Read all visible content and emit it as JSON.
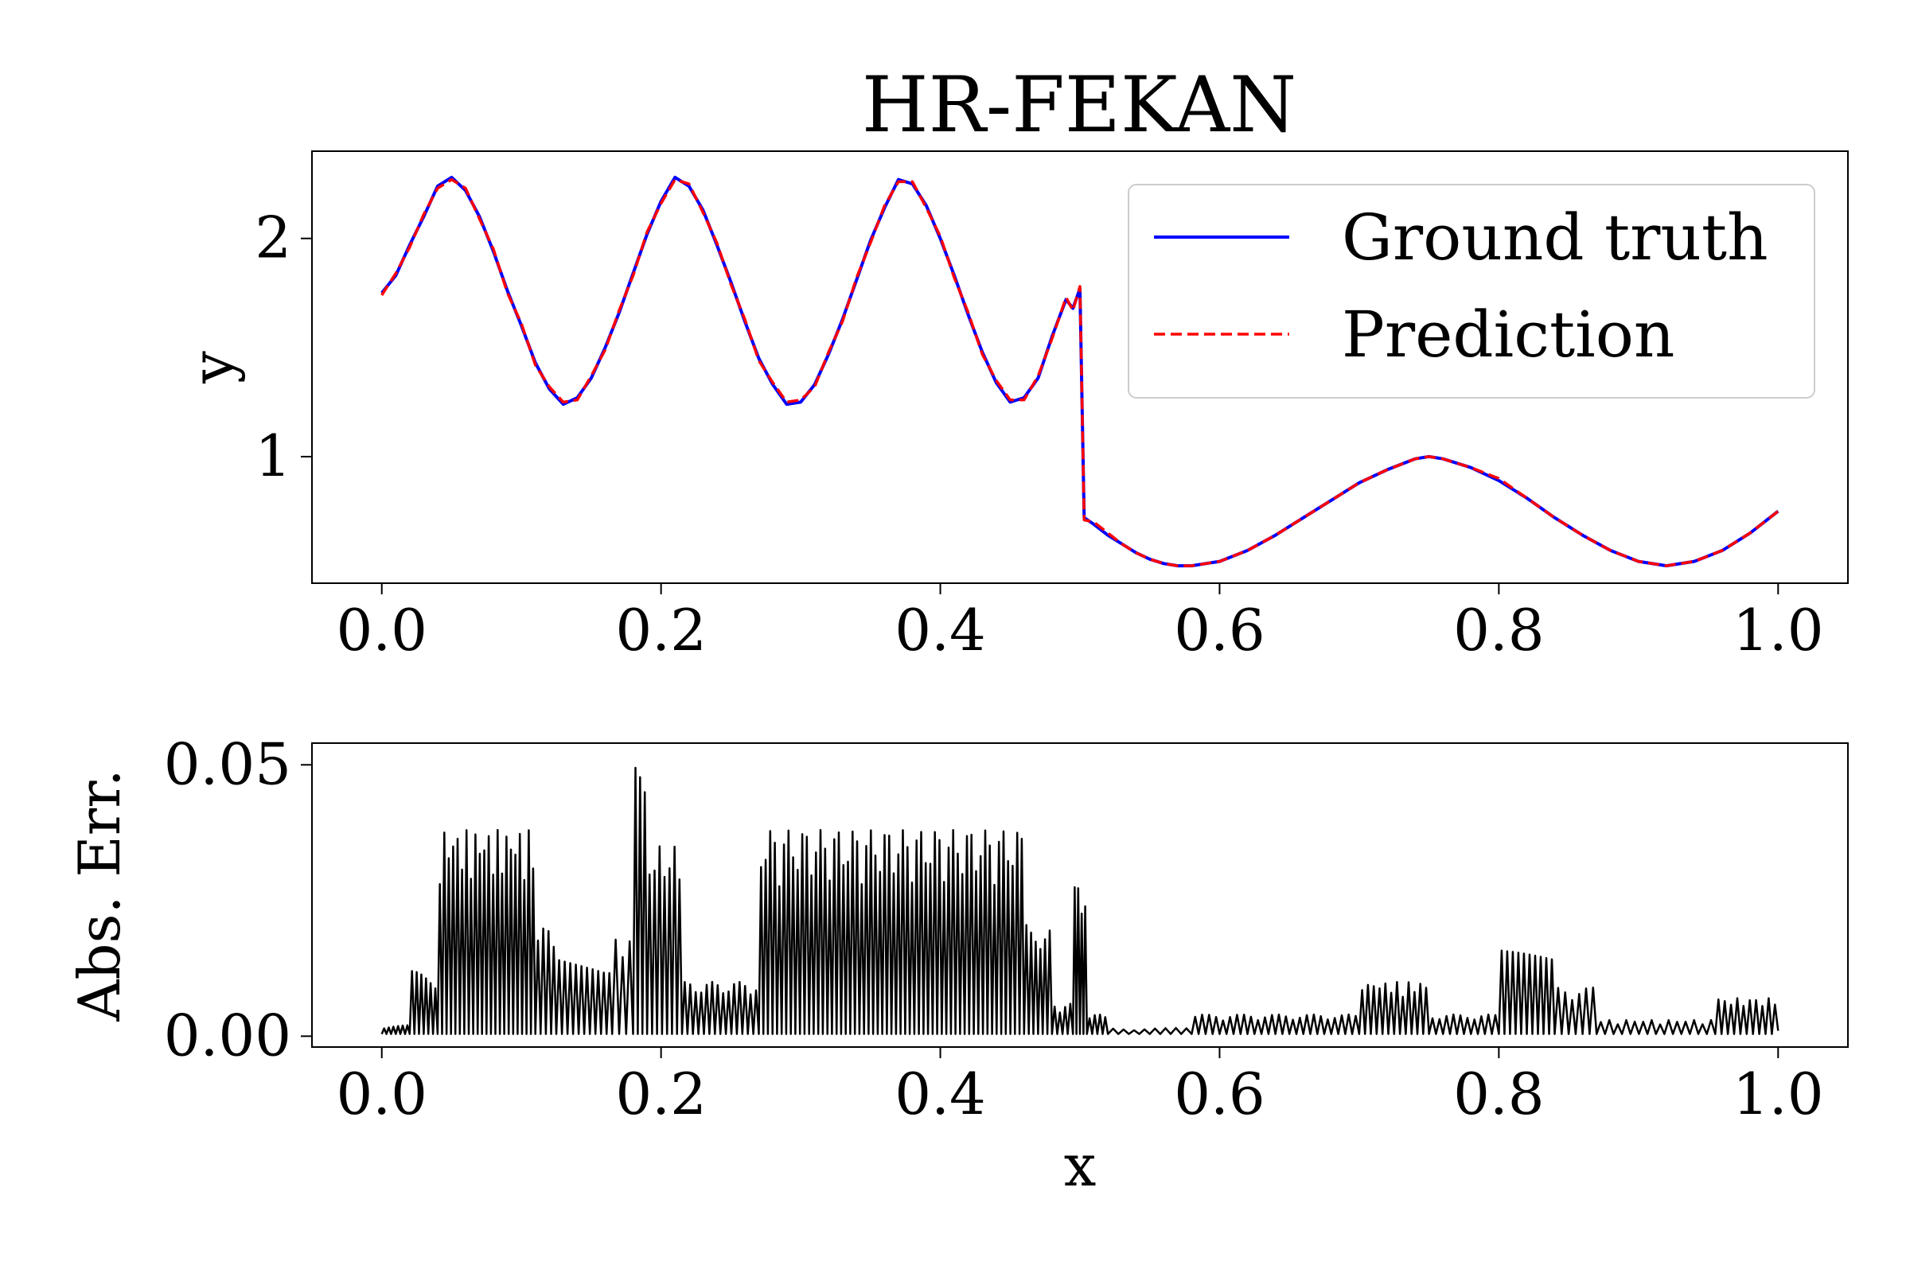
{
  "title": "HR-FEKAN",
  "colors": {
    "ground_truth": "#0000ff",
    "prediction": "#ff0000",
    "error": "#000000",
    "legend_border": "#cccccc"
  },
  "chart_data": [
    {
      "type": "line",
      "title": "HR-FEKAN",
      "xlabel": "",
      "ylabel": "y",
      "xlim": [
        -0.05,
        1.05
      ],
      "ylim": [
        0.42,
        2.4
      ],
      "xticks": [
        "0.0",
        "0.2",
        "0.4",
        "0.6",
        "0.8",
        "1.0"
      ],
      "xtick_values": [
        0.0,
        0.2,
        0.4,
        0.6,
        0.8,
        1.0
      ],
      "yticks": [
        "1",
        "2"
      ],
      "ytick_values": [
        1,
        2
      ],
      "legend": {
        "position": "top-right"
      },
      "series": [
        {
          "name": "Ground truth",
          "style": "solid",
          "x": [
            0.0,
            0.01,
            0.02,
            0.03,
            0.04,
            0.05,
            0.06,
            0.07,
            0.08,
            0.09,
            0.1,
            0.11,
            0.12,
            0.13,
            0.14,
            0.15,
            0.16,
            0.17,
            0.18,
            0.19,
            0.2,
            0.21,
            0.22,
            0.23,
            0.24,
            0.25,
            0.26,
            0.27,
            0.28,
            0.29,
            0.3,
            0.31,
            0.32,
            0.33,
            0.34,
            0.35,
            0.36,
            0.37,
            0.38,
            0.39,
            0.4,
            0.41,
            0.42,
            0.43,
            0.44,
            0.45,
            0.46,
            0.47,
            0.48,
            0.49,
            0.495,
            0.5,
            0.503,
            0.51,
            0.52,
            0.53,
            0.54,
            0.55,
            0.56,
            0.57,
            0.58,
            0.6,
            0.62,
            0.64,
            0.66,
            0.68,
            0.7,
            0.72,
            0.74,
            0.75,
            0.76,
            0.78,
            0.8,
            0.82,
            0.84,
            0.86,
            0.88,
            0.9,
            0.92,
            0.94,
            0.96,
            0.98,
            1.0
          ],
          "y": [
            1.75,
            1.83,
            1.97,
            2.1,
            2.24,
            2.28,
            2.22,
            2.1,
            1.94,
            1.76,
            1.6,
            1.43,
            1.31,
            1.24,
            1.27,
            1.36,
            1.5,
            1.66,
            1.84,
            2.02,
            2.17,
            2.28,
            2.24,
            2.13,
            1.97,
            1.8,
            1.62,
            1.45,
            1.33,
            1.24,
            1.25,
            1.33,
            1.47,
            1.63,
            1.81,
            1.99,
            2.14,
            2.27,
            2.25,
            2.15,
            2.0,
            1.83,
            1.65,
            1.48,
            1.34,
            1.25,
            1.27,
            1.36,
            1.55,
            1.72,
            1.68,
            1.77,
            0.72,
            0.69,
            0.64,
            0.6,
            0.56,
            0.53,
            0.51,
            0.5,
            0.5,
            0.52,
            0.57,
            0.64,
            0.72,
            0.8,
            0.88,
            0.94,
            0.99,
            1.0,
            0.99,
            0.95,
            0.89,
            0.81,
            0.72,
            0.64,
            0.57,
            0.52,
            0.5,
            0.52,
            0.57,
            0.65,
            0.75
          ]
        },
        {
          "name": "Prediction",
          "style": "dashed",
          "x": [
            0.0,
            0.01,
            0.02,
            0.03,
            0.04,
            0.05,
            0.06,
            0.07,
            0.08,
            0.09,
            0.1,
            0.11,
            0.12,
            0.13,
            0.14,
            0.15,
            0.16,
            0.17,
            0.18,
            0.19,
            0.2,
            0.21,
            0.22,
            0.23,
            0.24,
            0.25,
            0.26,
            0.27,
            0.28,
            0.29,
            0.3,
            0.31,
            0.32,
            0.33,
            0.34,
            0.35,
            0.36,
            0.37,
            0.38,
            0.39,
            0.4,
            0.41,
            0.42,
            0.43,
            0.44,
            0.45,
            0.46,
            0.47,
            0.48,
            0.49,
            0.495,
            0.5,
            0.503,
            0.51,
            0.52,
            0.53,
            0.54,
            0.55,
            0.56,
            0.57,
            0.58,
            0.6,
            0.62,
            0.64,
            0.66,
            0.68,
            0.7,
            0.72,
            0.74,
            0.75,
            0.76,
            0.78,
            0.8,
            0.82,
            0.84,
            0.86,
            0.88,
            0.9,
            0.92,
            0.94,
            0.96,
            0.98,
            1.0
          ],
          "y": [
            1.74,
            1.84,
            1.96,
            2.11,
            2.23,
            2.27,
            2.23,
            2.09,
            1.95,
            1.75,
            1.61,
            1.42,
            1.32,
            1.25,
            1.26,
            1.37,
            1.49,
            1.67,
            1.83,
            2.03,
            2.16,
            2.27,
            2.25,
            2.12,
            1.98,
            1.79,
            1.63,
            1.44,
            1.34,
            1.25,
            1.26,
            1.32,
            1.48,
            1.62,
            1.82,
            1.98,
            2.15,
            2.26,
            2.26,
            2.14,
            2.01,
            1.82,
            1.66,
            1.47,
            1.35,
            1.26,
            1.26,
            1.37,
            1.54,
            1.73,
            1.67,
            1.78,
            0.71,
            0.7,
            0.65,
            0.6,
            0.56,
            0.53,
            0.51,
            0.5,
            0.5,
            0.52,
            0.57,
            0.64,
            0.72,
            0.8,
            0.88,
            0.94,
            0.99,
            1.0,
            0.99,
            0.95,
            0.9,
            0.81,
            0.72,
            0.64,
            0.57,
            0.52,
            0.5,
            0.52,
            0.57,
            0.65,
            0.75
          ]
        }
      ]
    },
    {
      "type": "line",
      "xlabel": "x",
      "ylabel": "Abs. Err.",
      "xlim": [
        -0.05,
        1.05
      ],
      "ylim": [
        -0.002,
        0.054
      ],
      "xticks": [
        "0.0",
        "0.2",
        "0.4",
        "0.6",
        "0.8",
        "1.0"
      ],
      "xtick_values": [
        0.0,
        0.2,
        0.4,
        0.6,
        0.8,
        1.0
      ],
      "yticks": [
        "0.00",
        "0.05"
      ],
      "ytick_values": [
        0.0,
        0.05
      ],
      "series": [
        {
          "name": "",
          "segments": [
            {
              "x0": 0.0,
              "x1": 0.02,
              "amp": 0.002,
              "n": 6
            },
            {
              "x0": 0.02,
              "x1": 0.04,
              "amp": 0.012,
              "n": 6
            },
            {
              "x0": 0.04,
              "x1": 0.11,
              "amp": 0.038,
              "n": 22
            },
            {
              "x0": 0.11,
              "x1": 0.125,
              "amp": 0.02,
              "n": 4
            },
            {
              "x0": 0.125,
              "x1": 0.165,
              "amp": 0.016,
              "n": 10
            },
            {
              "x0": 0.165,
              "x1": 0.18,
              "amp": 0.02,
              "n": 3
            },
            {
              "x0": 0.18,
              "x1": 0.19,
              "amp": 0.05,
              "n": 3
            },
            {
              "x0": 0.19,
              "x1": 0.215,
              "amp": 0.035,
              "n": 7
            },
            {
              "x0": 0.215,
              "x1": 0.27,
              "amp": 0.01,
              "n": 14
            },
            {
              "x0": 0.27,
              "x1": 0.46,
              "amp": 0.038,
              "n": 58
            },
            {
              "x0": 0.46,
              "x1": 0.48,
              "amp": 0.022,
              "n": 6
            },
            {
              "x0": 0.48,
              "x1": 0.495,
              "amp": 0.006,
              "n": 4
            },
            {
              "x0": 0.495,
              "x1": 0.505,
              "amp": 0.028,
              "n": 4
            },
            {
              "x0": 0.505,
              "x1": 0.52,
              "amp": 0.004,
              "n": 4
            },
            {
              "x0": 0.52,
              "x1": 0.58,
              "amp": 0.0015,
              "n": 8
            },
            {
              "x0": 0.58,
              "x1": 0.7,
              "amp": 0.004,
              "n": 24
            },
            {
              "x0": 0.7,
              "x1": 0.75,
              "amp": 0.01,
              "n": 12
            },
            {
              "x0": 0.75,
              "x1": 0.8,
              "amp": 0.004,
              "n": 10
            },
            {
              "x0": 0.8,
              "x1": 0.84,
              "amp": 0.016,
              "n": 10
            },
            {
              "x0": 0.84,
              "x1": 0.87,
              "amp": 0.009,
              "n": 6
            },
            {
              "x0": 0.87,
              "x1": 0.955,
              "amp": 0.003,
              "n": 14
            },
            {
              "x0": 0.955,
              "x1": 1.0,
              "amp": 0.007,
              "n": 10
            }
          ]
        }
      ]
    }
  ]
}
